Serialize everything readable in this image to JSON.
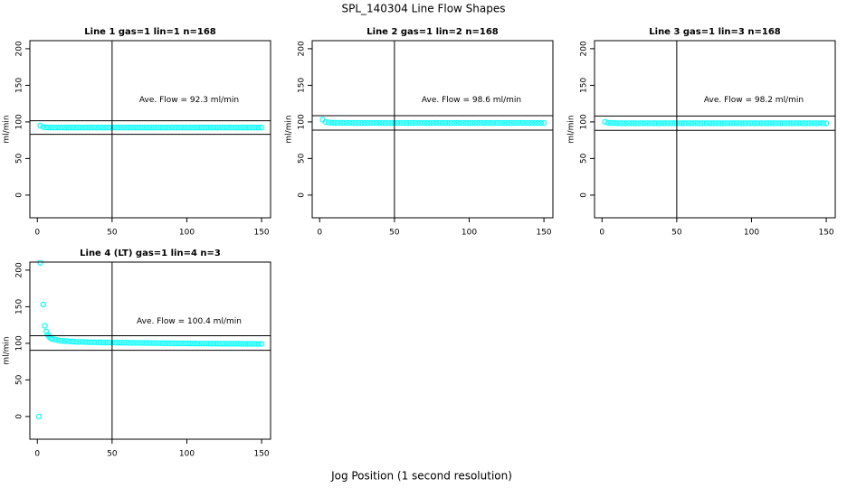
{
  "title": "SPL_140304  Line Flow Shapes",
  "xlabel": "Jog Position (1 second resolution)",
  "chart_data": [
    {
      "type": "scatter",
      "title": "Line 1 gas=1 lin=1 n=168",
      "ylabel": "ml/min",
      "annotation": "Ave. Flow =  92.3  ml/min",
      "color": "#00ffff",
      "xlim": [
        -5,
        156
      ],
      "ylim": [
        -31,
        211
      ],
      "xticks": [
        0,
        50,
        100,
        150
      ],
      "yticks": [
        0,
        50,
        100,
        150,
        200
      ],
      "hlines": [
        101.5,
        83.1
      ],
      "vline": 50,
      "x": [
        2,
        4,
        6,
        8,
        10,
        12,
        14,
        16,
        18,
        20,
        22,
        24,
        26,
        28,
        30,
        32,
        34,
        36,
        38,
        40,
        42,
        44,
        46,
        48,
        50,
        52,
        54,
        56,
        58,
        60,
        62,
        64,
        66,
        68,
        70,
        72,
        74,
        76,
        78,
        80,
        82,
        84,
        86,
        88,
        90,
        92,
        94,
        96,
        98,
        100,
        102,
        104,
        106,
        108,
        110,
        112,
        114,
        116,
        118,
        120,
        122,
        124,
        126,
        128,
        130,
        132,
        134,
        136,
        138,
        140,
        142,
        144,
        146,
        148,
        150
      ],
      "values": [
        95,
        93,
        92.5,
        92.4,
        92.3,
        92.3,
        92.4,
        92.3,
        92.2,
        92.3,
        92.3,
        92.4,
        92.3,
        92.3,
        92.2,
        92.3,
        92.3,
        92.3,
        92.4,
        92.3,
        92.3,
        92.2,
        92.3,
        92.3,
        92.3,
        92.4,
        92.3,
        92.3,
        92.3,
        92.2,
        92.3,
        92.3,
        92.4,
        92.3,
        92.3,
        92.3,
        92.2,
        92.3,
        92.3,
        92.3,
        92.4,
        92.3,
        92.3,
        92.2,
        92.3,
        92.3,
        92.3,
        92.4,
        92.3,
        92.3,
        92.3,
        92.2,
        92.3,
        92.3,
        92.3,
        92.4,
        92.3,
        92.3,
        92.2,
        92.3,
        92.3,
        92.3,
        92.4,
        92.3,
        92.3,
        92.3,
        92.2,
        92.3,
        92.3,
        92.3,
        92.4,
        92.3,
        92.3,
        92.2,
        92.3
      ]
    },
    {
      "type": "scatter",
      "title": "Line 2 gas=1 lin=2 n=168",
      "ylabel": "ml/min",
      "annotation": "Ave. Flow =  98.6  ml/min",
      "color": "#00ffff",
      "xlim": [
        -5,
        156
      ],
      "ylim": [
        -31,
        211
      ],
      "xticks": [
        0,
        50,
        100,
        150
      ],
      "yticks": [
        0,
        50,
        100,
        150,
        200
      ],
      "hlines": [
        108.5,
        88.7
      ],
      "vline": 50,
      "x": [
        2,
        4,
        6,
        8,
        10,
        12,
        14,
        16,
        18,
        20,
        22,
        24,
        26,
        28,
        30,
        32,
        34,
        36,
        38,
        40,
        42,
        44,
        46,
        48,
        50,
        52,
        54,
        56,
        58,
        60,
        62,
        64,
        66,
        68,
        70,
        72,
        74,
        76,
        78,
        80,
        82,
        84,
        86,
        88,
        90,
        92,
        94,
        96,
        98,
        100,
        102,
        104,
        106,
        108,
        110,
        112,
        114,
        116,
        118,
        120,
        122,
        124,
        126,
        128,
        130,
        132,
        134,
        136,
        138,
        140,
        142,
        144,
        146,
        148,
        150
      ],
      "values": [
        103,
        100,
        99.2,
        98.9,
        98.8,
        98.7,
        98.7,
        98.6,
        98.7,
        98.6,
        98.6,
        98.7,
        98.6,
        98.6,
        98.5,
        98.6,
        98.6,
        98.7,
        98.6,
        98.6,
        98.6,
        98.5,
        98.6,
        98.6,
        98.7,
        98.6,
        98.6,
        98.6,
        98.5,
        98.6,
        98.6,
        98.7,
        98.6,
        98.6,
        98.6,
        98.5,
        98.6,
        98.6,
        98.7,
        98.6,
        98.6,
        98.6,
        98.5,
        98.6,
        98.6,
        98.7,
        98.6,
        98.6,
        98.6,
        98.5,
        98.6,
        98.6,
        98.7,
        98.6,
        98.6,
        98.6,
        98.5,
        98.6,
        98.6,
        98.7,
        98.6,
        98.6,
        98.6,
        98.5,
        98.6,
        98.6,
        98.7,
        98.6,
        98.6,
        98.6,
        98.5,
        98.6,
        98.6,
        98.7,
        98.6
      ]
    },
    {
      "type": "scatter",
      "title": "Line 3 gas=1 lin=3 n=168",
      "ylabel": "ml/min",
      "annotation": "Ave. Flow =  98.2  ml/min",
      "color": "#00ffff",
      "xlim": [
        -5,
        156
      ],
      "ylim": [
        -31,
        211
      ],
      "xticks": [
        0,
        50,
        100,
        150
      ],
      "yticks": [
        0,
        50,
        100,
        150,
        200
      ],
      "hlines": [
        108,
        88.4
      ],
      "vline": 50,
      "x": [
        2,
        4,
        6,
        8,
        10,
        12,
        14,
        16,
        18,
        20,
        22,
        24,
        26,
        28,
        30,
        32,
        34,
        36,
        38,
        40,
        42,
        44,
        46,
        48,
        50,
        52,
        54,
        56,
        58,
        60,
        62,
        64,
        66,
        68,
        70,
        72,
        74,
        76,
        78,
        80,
        82,
        84,
        86,
        88,
        90,
        92,
        94,
        96,
        98,
        100,
        102,
        104,
        106,
        108,
        110,
        112,
        114,
        116,
        118,
        120,
        122,
        124,
        126,
        128,
        130,
        132,
        134,
        136,
        138,
        140,
        142,
        144,
        146,
        148,
        150
      ],
      "values": [
        100,
        98.8,
        98.5,
        98.4,
        98.3,
        98.3,
        98.2,
        98.2,
        98.3,
        98.2,
        98.2,
        98.1,
        98.2,
        98.2,
        98.3,
        98.2,
        98.2,
        98.2,
        98.1,
        98.2,
        98.2,
        98.3,
        98.2,
        98.2,
        98.2,
        98.1,
        98.2,
        98.2,
        98.3,
        98.2,
        98.2,
        98.2,
        98.1,
        98.2,
        98.2,
        98.3,
        98.2,
        98.2,
        98.2,
        98.1,
        98.2,
        98.2,
        98.3,
        98.2,
        98.2,
        98.2,
        98.1,
        98.2,
        98.2,
        98.3,
        98.2,
        98.2,
        98.2,
        98.1,
        98.2,
        98.2,
        98.3,
        98.2,
        98.2,
        98.2,
        98.1,
        98.2,
        98.2,
        98.3,
        98.2,
        98.2,
        98.2,
        98.1,
        98.2,
        98.2,
        98.3,
        98.2,
        98.2,
        98.2,
        98.1
      ]
    },
    {
      "type": "scatter",
      "title": "Line 4 (LT) gas=1 lin=4 n=3",
      "ylabel": "ml/min",
      "annotation": "Ave. Flow =  100.4  ml/min",
      "color": "#00ffff",
      "xlim": [
        -5,
        156
      ],
      "ylim": [
        -31,
        211
      ],
      "xticks": [
        0,
        50,
        100,
        150
      ],
      "yticks": [
        0,
        50,
        100,
        150,
        200
      ],
      "hlines": [
        110.4,
        90.4
      ],
      "vline": 50,
      "x": [
        1,
        2,
        4,
        5,
        6,
        7,
        8,
        9,
        10,
        12,
        14,
        16,
        18,
        20,
        22,
        24,
        26,
        28,
        30,
        32,
        34,
        36,
        38,
        40,
        42,
        44,
        46,
        48,
        50,
        52,
        54,
        56,
        58,
        60,
        62,
        64,
        66,
        68,
        70,
        72,
        74,
        76,
        78,
        80,
        82,
        84,
        86,
        88,
        90,
        92,
        94,
        96,
        98,
        100,
        102,
        104,
        106,
        108,
        110,
        112,
        114,
        116,
        118,
        120,
        122,
        124,
        126,
        128,
        130,
        132,
        134,
        136,
        138,
        140,
        142,
        144,
        146,
        148,
        150
      ],
      "values": [
        0,
        210,
        153,
        124,
        116,
        112,
        109,
        107,
        106,
        105,
        104,
        103.5,
        103,
        103,
        102.5,
        102.5,
        102,
        102,
        102,
        101.8,
        101.6,
        101.5,
        101.5,
        101.4,
        101.3,
        101.2,
        101.2,
        101.1,
        101,
        101,
        101,
        100.9,
        100.8,
        100.8,
        100.7,
        100.7,
        100.6,
        100.6,
        100.5,
        100.5,
        100.5,
        100.4,
        100.4,
        100.3,
        100.3,
        100.2,
        100.2,
        100.1,
        100.1,
        100,
        100,
        99.9,
        99.9,
        99.9,
        99.8,
        99.8,
        99.8,
        99.7,
        99.7,
        99.7,
        99.6,
        99.6,
        99.6,
        99.6,
        99.5,
        99.5,
        99.5,
        99.5,
        99.4,
        99.4,
        99.4,
        99.4,
        99.3,
        99.3,
        99.3,
        99.3,
        99.2,
        99.2,
        99.2
      ]
    }
  ]
}
